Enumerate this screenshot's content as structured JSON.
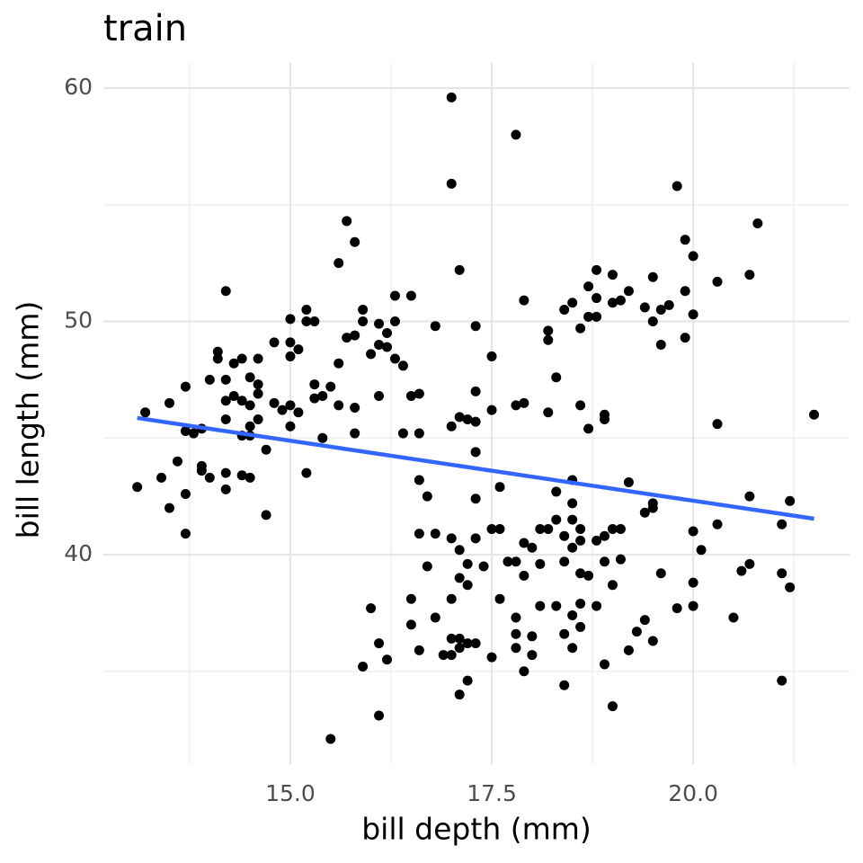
{
  "chart_data": {
    "type": "scatter",
    "title": "train",
    "x_label": "bill depth (mm)",
    "y_label": "bill length (mm)",
    "x": [
      13.1,
      13.2,
      13.4,
      13.5,
      13.5,
      13.6,
      13.7,
      13.7,
      13.7,
      13.7,
      13.8,
      13.9,
      13.9,
      13.9,
      14.0,
      14.0,
      14.1,
      14.1,
      14.2,
      14.2,
      14.2,
      14.2,
      14.2,
      14.2,
      14.3,
      14.3,
      14.4,
      14.4,
      14.4,
      14.4,
      14.5,
      14.5,
      14.5,
      14.5,
      14.5,
      14.6,
      14.6,
      14.6,
      14.6,
      14.7,
      14.7,
      14.8,
      14.8,
      14.9,
      15.0,
      15.0,
      15.0,
      15.0,
      15.0,
      15.1,
      15.1,
      15.2,
      15.2,
      15.2,
      15.3,
      15.3,
      15.3,
      15.4,
      15.4,
      15.5,
      15.5,
      15.6,
      15.6,
      15.6,
      15.7,
      15.7,
      15.8,
      15.8,
      15.8,
      15.8,
      15.9,
      15.9,
      15.9,
      16.0,
      16.0,
      16.1,
      16.1,
      16.1,
      16.1,
      16.1,
      16.2,
      16.2,
      16.2,
      16.3,
      16.3,
      16.3,
      16.4,
      16.4,
      16.5,
      16.5,
      16.5,
      16.5,
      16.6,
      16.6,
      16.6,
      16.6,
      16.6,
      16.7,
      16.7,
      16.8,
      16.8,
      16.8,
      16.9,
      17.0,
      17.0,
      17.0,
      17.0,
      17.0,
      17.0,
      17.0,
      17.1,
      17.1,
      17.1,
      17.1,
      17.1,
      17.1,
      17.1,
      17.2,
      17.2,
      17.2,
      17.2,
      17.2,
      17.3,
      17.3,
      17.3,
      17.3,
      17.3,
      17.3,
      17.3,
      17.4,
      17.5,
      17.5,
      17.5,
      17.5,
      17.6,
      17.6,
      17.6,
      17.7,
      17.8,
      17.8,
      17.8,
      17.8,
      17.8,
      17.8,
      17.9,
      17.9,
      17.9,
      17.9,
      17.9,
      18.0,
      18.0,
      18.0,
      18.1,
      18.1,
      18.1,
      18.2,
      18.2,
      18.2,
      18.2,
      18.3,
      18.3,
      18.3,
      18.3,
      18.4,
      18.4,
      18.4,
      18.4,
      18.4,
      18.5,
      18.5,
      18.5,
      18.5,
      18.5,
      18.5,
      18.5,
      18.6,
      18.6,
      18.6,
      18.6,
      18.6,
      18.6,
      18.6,
      18.7,
      18.7,
      18.7,
      18.7,
      18.8,
      18.8,
      18.8,
      18.8,
      18.8,
      18.9,
      18.9,
      18.9,
      18.9,
      18.9,
      19.0,
      19.0,
      19.0,
      19.0,
      19.0,
      19.1,
      19.1,
      19.1,
      19.2,
      19.2,
      19.2,
      19.3,
      19.4,
      19.4,
      19.4,
      19.5,
      19.5,
      19.5,
      19.5,
      19.5,
      19.6,
      19.6,
      19.6,
      19.7,
      19.8,
      19.8,
      19.9,
      19.9,
      19.9,
      20.0,
      20.0,
      20.0,
      20.0,
      20.0,
      20.1,
      20.3,
      20.3,
      20.3,
      20.5,
      20.6,
      20.7,
      20.7,
      20.7,
      20.8,
      21.1,
      21.1,
      21.1,
      21.2,
      21.2,
      21.5
    ],
    "values": [
      42.9,
      46.1,
      43.3,
      46.5,
      42.0,
      44.0,
      47.2,
      45.3,
      42.6,
      40.9,
      45.2,
      45.4,
      43.8,
      43.6,
      47.5,
      43.3,
      48.7,
      48.4,
      51.3,
      47.5,
      46.6,
      45.8,
      43.5,
      42.8,
      48.2,
      46.8,
      48.4,
      46.6,
      45.1,
      43.4,
      47.6,
      46.4,
      45.5,
      45.1,
      43.3,
      48.4,
      47.3,
      46.9,
      45.8,
      44.5,
      41.7,
      49.1,
      46.5,
      46.2,
      50.1,
      49.1,
      48.5,
      46.4,
      45.5,
      48.8,
      46.1,
      50.5,
      50.0,
      43.5,
      50.0,
      47.3,
      46.7,
      46.8,
      45.0,
      47.2,
      32.1,
      52.5,
      48.2,
      46.4,
      54.3,
      49.3,
      53.4,
      49.4,
      46.3,
      45.2,
      50.5,
      50.0,
      35.2,
      48.6,
      37.7,
      49.9,
      49.0,
      46.8,
      36.2,
      33.1,
      48.9,
      49.5,
      35.5,
      51.1,
      50.0,
      48.4,
      48.1,
      45.2,
      51.1,
      46.8,
      38.1,
      37.0,
      46.9,
      45.2,
      43.2,
      40.9,
      35.9,
      42.5,
      39.5,
      49.8,
      40.9,
      37.3,
      35.7,
      59.6,
      55.9,
      45.5,
      40.7,
      38.1,
      36.4,
      35.7,
      52.2,
      45.9,
      40.2,
      39.0,
      36.4,
      36.0,
      34.0,
      45.8,
      39.6,
      38.7,
      36.2,
      34.6,
      49.8,
      47.0,
      45.7,
      44.4,
      42.4,
      40.7,
      36.2,
      39.5,
      48.5,
      46.2,
      41.1,
      35.6,
      42.9,
      41.1,
      38.1,
      39.7,
      58.0,
      46.4,
      39.7,
      37.3,
      36.6,
      36.0,
      50.9,
      46.5,
      40.5,
      39.1,
      35.0,
      40.3,
      36.5,
      35.7,
      39.6,
      37.8,
      41.1,
      49.6,
      49.2,
      46.1,
      41.1,
      47.6,
      42.7,
      41.5,
      37.8,
      50.5,
      40.8,
      39.7,
      36.6,
      34.4,
      50.8,
      43.2,
      42.2,
      41.5,
      40.3,
      37.4,
      36.0,
      49.7,
      46.4,
      41.1,
      40.6,
      39.2,
      37.9,
      36.9,
      51.5,
      50.2,
      45.4,
      39.1,
      52.2,
      51.0,
      50.2,
      40.6,
      37.8,
      46.0,
      45.8,
      40.8,
      39.7,
      35.3,
      52.0,
      50.8,
      41.1,
      38.7,
      33.5,
      50.9,
      41.1,
      39.8,
      51.3,
      43.1,
      35.9,
      36.7,
      50.6,
      41.8,
      37.2,
      51.9,
      50.0,
      42.2,
      42.0,
      36.3,
      50.5,
      49.0,
      39.2,
      50.7,
      55.8,
      37.7,
      53.5,
      51.3,
      49.3,
      52.8,
      50.3,
      41.0,
      38.8,
      37.8,
      40.2,
      51.7,
      45.6,
      41.3,
      37.3,
      39.3,
      52.0,
      42.5,
      39.6,
      54.2,
      41.3,
      39.2,
      34.6,
      42.3,
      38.6,
      46.0
    ],
    "color": "#000000",
    "xlim": [
      12.68,
      21.94
    ],
    "ylim": [
      31.02,
      61.08
    ],
    "xticks": [
      {
        "value": 15,
        "label": "15.0"
      },
      {
        "value": 17.5,
        "label": "17.5"
      },
      {
        "value": 20,
        "label": "20.0"
      }
    ],
    "yticks": [
      40,
      50,
      60
    ],
    "x_minor_ticks": [
      13.75,
      16.25,
      18.75,
      21.25
    ],
    "y_minor_ticks": [
      35,
      45,
      55
    ],
    "grid": true,
    "fit": {
      "x": [
        13.1,
        21.5
      ],
      "values": [
        45.86,
        41.54
      ],
      "color": "#3366ff"
    }
  }
}
